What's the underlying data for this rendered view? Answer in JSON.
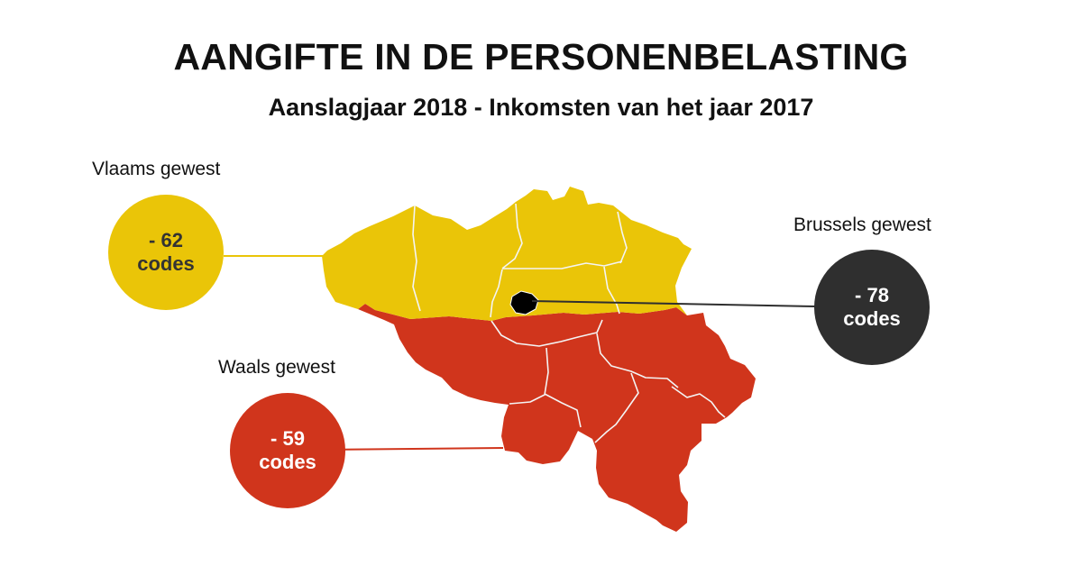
{
  "title": "AANGIFTE IN DE PERSONENBELASTING",
  "subtitle": "Aanslagjaar 2018 - Inkomsten van het jaar 2017",
  "regions": {
    "flanders": {
      "label": "Vlaams gewest",
      "value": "- 62",
      "unit": "codes",
      "color": "#EAC508",
      "text_color": "#333333"
    },
    "brussels": {
      "label": "Brussels gewest",
      "value": "- 78",
      "unit": "codes",
      "color": "#2F2F2F",
      "text_color": "#ffffff"
    },
    "wallonia": {
      "label": "Waals gewest",
      "value": "- 59",
      "unit": "codes",
      "color": "#D0351C",
      "text_color": "#ffffff"
    }
  }
}
